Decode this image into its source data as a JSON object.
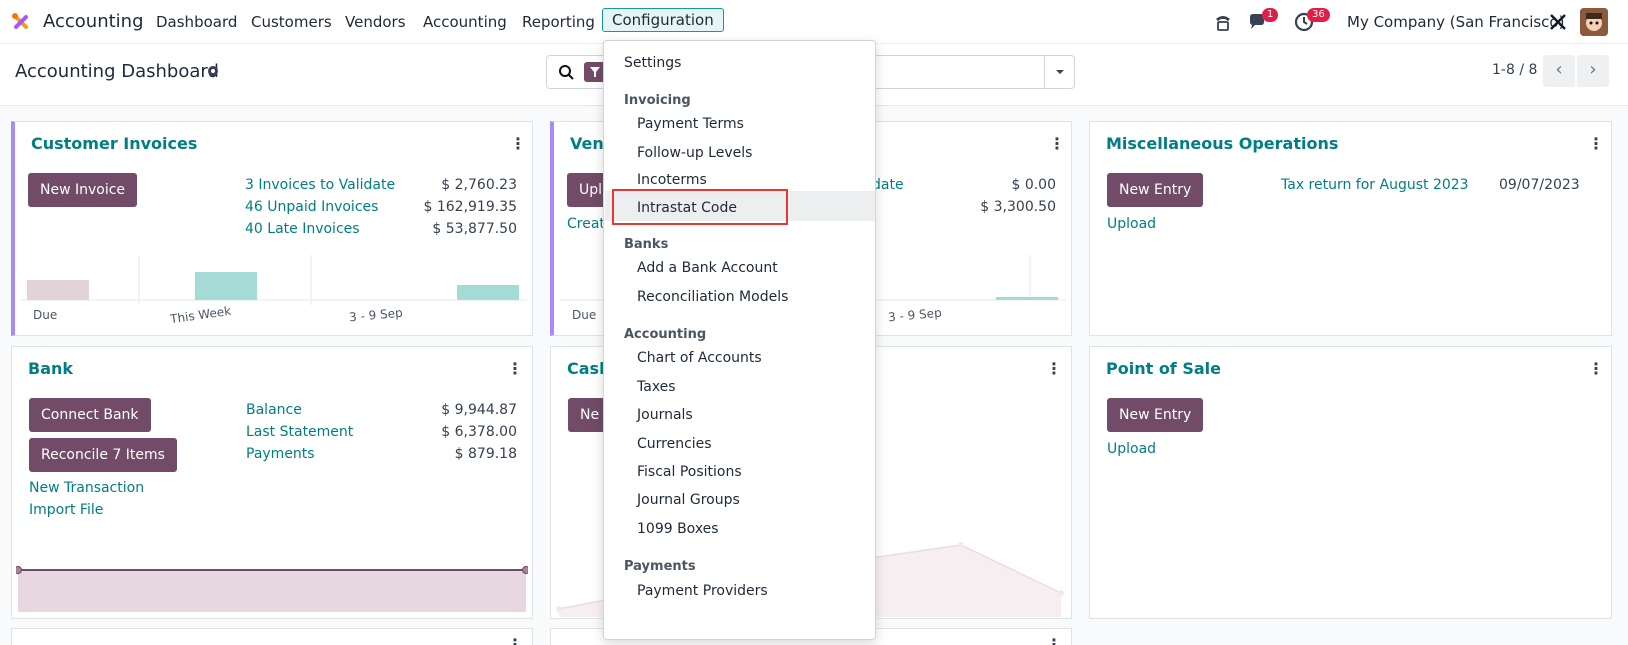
{
  "navbar": {
    "app_name": "Accounting",
    "menus": [
      "Dashboard",
      "Customers",
      "Vendors",
      "Accounting",
      "Reporting",
      "Configuration"
    ],
    "messages_badge": "1",
    "activities_badge": "36",
    "company": "My Company (San Francisco)"
  },
  "control_panel": {
    "title": "Accounting Dashboard",
    "pager": "1-8 / 8"
  },
  "cards": {
    "customer_invoices": {
      "title": "Customer Invoices",
      "button": "New Invoice",
      "rows": [
        {
          "label": "3 Invoices to Validate",
          "amount": "$ 2,760.23"
        },
        {
          "label": "46 Unpaid Invoices",
          "amount": "$ 162,919.35"
        },
        {
          "label": "40 Late Invoices",
          "amount": "$ 53,877.50"
        }
      ],
      "axis": [
        "Due",
        "This Week",
        "3 - 9 Sep"
      ]
    },
    "vendor_bills": {
      "title_visible": "Vend",
      "button_visible": "Upl",
      "link_visible": "Creat",
      "row_label_visible": "date",
      "amounts": [
        "$ 0.00",
        "$ 3,300.50"
      ],
      "axis": [
        "Due",
        "3 - 9 Sep"
      ]
    },
    "misc": {
      "title": "Miscellaneous Operations",
      "button": "New Entry",
      "link": "Upload",
      "tax_link": "Tax return for August 2023",
      "tax_date": "09/07/2023"
    },
    "bank": {
      "title": "Bank",
      "button1": "Connect Bank",
      "button2": "Reconcile 7 Items",
      "links": [
        "New Transaction",
        "Import File"
      ],
      "rows": [
        {
          "label": "Balance",
          "amount": "$ 9,944.87"
        },
        {
          "label": "Last Statement",
          "amount": "$ 6,378.00"
        },
        {
          "label": "Payments",
          "amount": "$ 879.18"
        }
      ]
    },
    "cash": {
      "title_visible": "Cash",
      "button_visible": "Ne"
    },
    "pos": {
      "title": "Point of Sale",
      "button": "New Entry",
      "link": "Upload"
    }
  },
  "dropdown": {
    "settings": "Settings",
    "invoicing_header": "Invoicing",
    "invoicing": [
      "Payment Terms",
      "Follow-up Levels",
      "Incoterms",
      "Intrastat Code"
    ],
    "banks_header": "Banks",
    "banks": [
      "Add a Bank Account",
      "Reconciliation Models"
    ],
    "accounting_header": "Accounting",
    "accounting": [
      "Chart of Accounts",
      "Taxes",
      "Journals",
      "Currencies",
      "Fiscal Positions",
      "Journal Groups",
      "1099 Boxes"
    ],
    "payments_header": "Payments",
    "payments": [
      "Payment Providers"
    ]
  },
  "colors": {
    "brand": "#714b67",
    "link": "#017e84",
    "highlight": "#e53935"
  }
}
